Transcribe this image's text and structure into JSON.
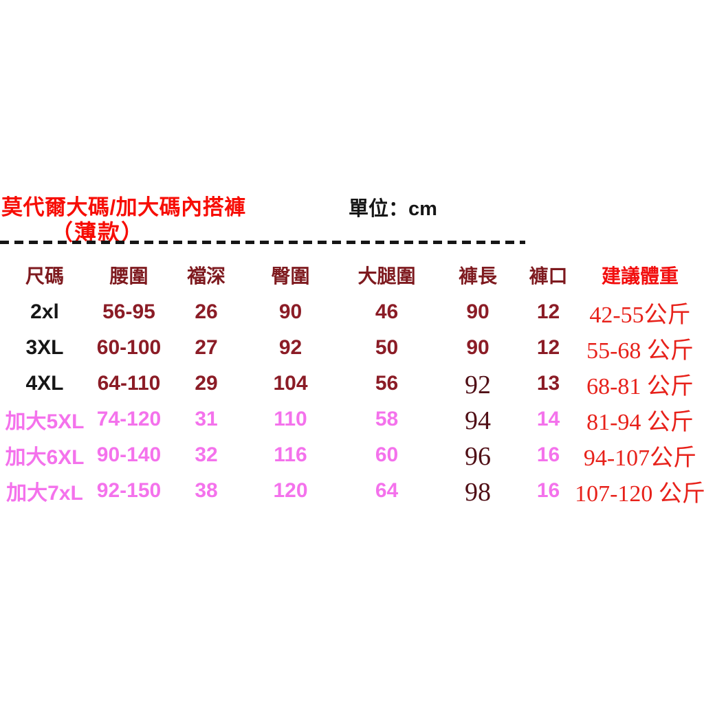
{
  "page": {
    "title": "莫代爾大碼/加大碼內搭褲",
    "subtitle": "（薄款）",
    "unit_label": "單位：cm"
  },
  "colors": {
    "title_red": "#F70D05",
    "header_maroon": "#7E1A1F",
    "data_maroon": "#8B1C26",
    "suggest_red": "#F20E0E",
    "weight_red": "#E7211A",
    "pink": "#F472EC",
    "dark_serif_maroon": "#500F16",
    "black": "#161616"
  },
  "table": {
    "headers": [
      "尺碼",
      "腰圍",
      "襠深",
      "臀圍",
      "大腿圍",
      "褲長",
      "褲口",
      "建議體重"
    ],
    "rows": [
      {
        "cells": [
          "2xl",
          "56-95",
          "26",
          "90",
          "46",
          "90",
          "12",
          "42-55公斤"
        ],
        "pink": false,
        "length_serif": false
      },
      {
        "cells": [
          "3XL",
          "60-100",
          "27",
          "92",
          "50",
          "90",
          "12",
          "55-68 公斤"
        ],
        "pink": false,
        "length_serif": false
      },
      {
        "cells": [
          "4XL",
          "64-110",
          "29",
          "104",
          "56",
          "92",
          "13",
          "68-81 公斤"
        ],
        "pink": false,
        "length_serif": true
      },
      {
        "cells": [
          "加大5XL",
          "74-120",
          "31",
          "110",
          "58",
          "94",
          "14",
          "81-94 公斤"
        ],
        "pink": true,
        "length_serif": true
      },
      {
        "cells": [
          "加大6XL",
          "90-140",
          "32",
          "116",
          "60",
          "96",
          "16",
          "94-107公斤"
        ],
        "pink": true,
        "length_serif": true
      },
      {
        "cells": [
          "加大7xL",
          "92-150",
          "38",
          "120",
          "64",
          "98",
          "16",
          "107-120 公斤"
        ],
        "pink": true,
        "length_serif": true
      }
    ]
  },
  "chart_data": {
    "type": "table",
    "title": "莫代爾大碼/加大碼內搭褲（薄款）",
    "unit": "cm",
    "columns": [
      "尺碼",
      "腰圍",
      "襠深",
      "臀圍",
      "大腿圍",
      "褲長",
      "褲口",
      "建議體重"
    ],
    "rows": [
      [
        "2xl",
        "56-95",
        26,
        90,
        46,
        90,
        12,
        "42-55公斤"
      ],
      [
        "3XL",
        "60-100",
        27,
        92,
        50,
        90,
        12,
        "55-68公斤"
      ],
      [
        "4XL",
        "64-110",
        29,
        104,
        56,
        92,
        13,
        "68-81公斤"
      ],
      [
        "加大5XL",
        "74-120",
        31,
        110,
        58,
        94,
        14,
        "81-94公斤"
      ],
      [
        "加大6XL",
        "90-140",
        32,
        116,
        60,
        96,
        16,
        "94-107公斤"
      ],
      [
        "加大7xL",
        "92-150",
        38,
        120,
        64,
        98,
        16,
        "107-120公斤"
      ]
    ]
  }
}
